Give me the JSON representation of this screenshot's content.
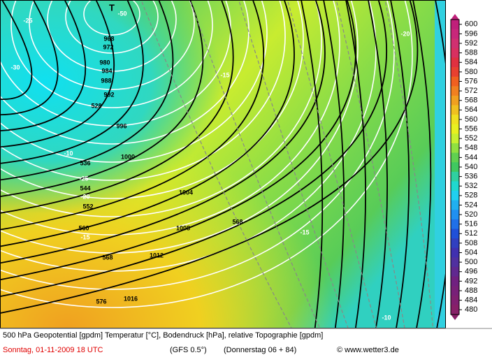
{
  "map": {
    "low_marker": "T",
    "isobar_labels": [
      "968",
      "972",
      "980",
      "984",
      "988",
      "992",
      "996",
      "1000",
      "1004",
      "1008",
      "1012",
      "1016"
    ],
    "geopotential_labels": [
      "528",
      "536",
      "544",
      "552",
      "560",
      "568",
      "568",
      "576"
    ],
    "temperature_labels": [
      "-50",
      "-25",
      "-30",
      "-15",
      "-10",
      "-25",
      "-20",
      "-15",
      "-20",
      "-15",
      "-10"
    ]
  },
  "legend": {
    "levels": [
      600,
      596,
      592,
      588,
      584,
      580,
      576,
      572,
      568,
      564,
      560,
      556,
      552,
      548,
      544,
      540,
      536,
      532,
      528,
      524,
      520,
      516,
      512,
      508,
      504,
      500,
      496,
      492,
      488,
      484,
      480
    ],
    "colors": [
      "#c0207a",
      "#c8287a",
      "#d03070",
      "#d83060",
      "#e03040",
      "#e84030",
      "#f06020",
      "#f08020",
      "#f0a020",
      "#f0c020",
      "#f0e020",
      "#e8f020",
      "#c8f030",
      "#90e040",
      "#60d050",
      "#40c860",
      "#30d0a0",
      "#20d8d0",
      "#20d0f0",
      "#20b0f0",
      "#2090f0",
      "#2070e8",
      "#2050d8",
      "#3040c0",
      "#4030b0",
      "#5030a0",
      "#602890",
      "#702080",
      "#782078",
      "#802070",
      "#882068"
    ]
  },
  "footer": {
    "description": "500 hPa Geopotential [gpdm] Temperatur [°C], Bodendruck [hPa], relative Topographie [gpdm]",
    "date": "Sonntag, 01-11-2009   18 UTC",
    "model": "(GFS 0.5°)",
    "run": "(Donnerstag 06 + 84)",
    "copyright": "© www.wetter3.de"
  }
}
